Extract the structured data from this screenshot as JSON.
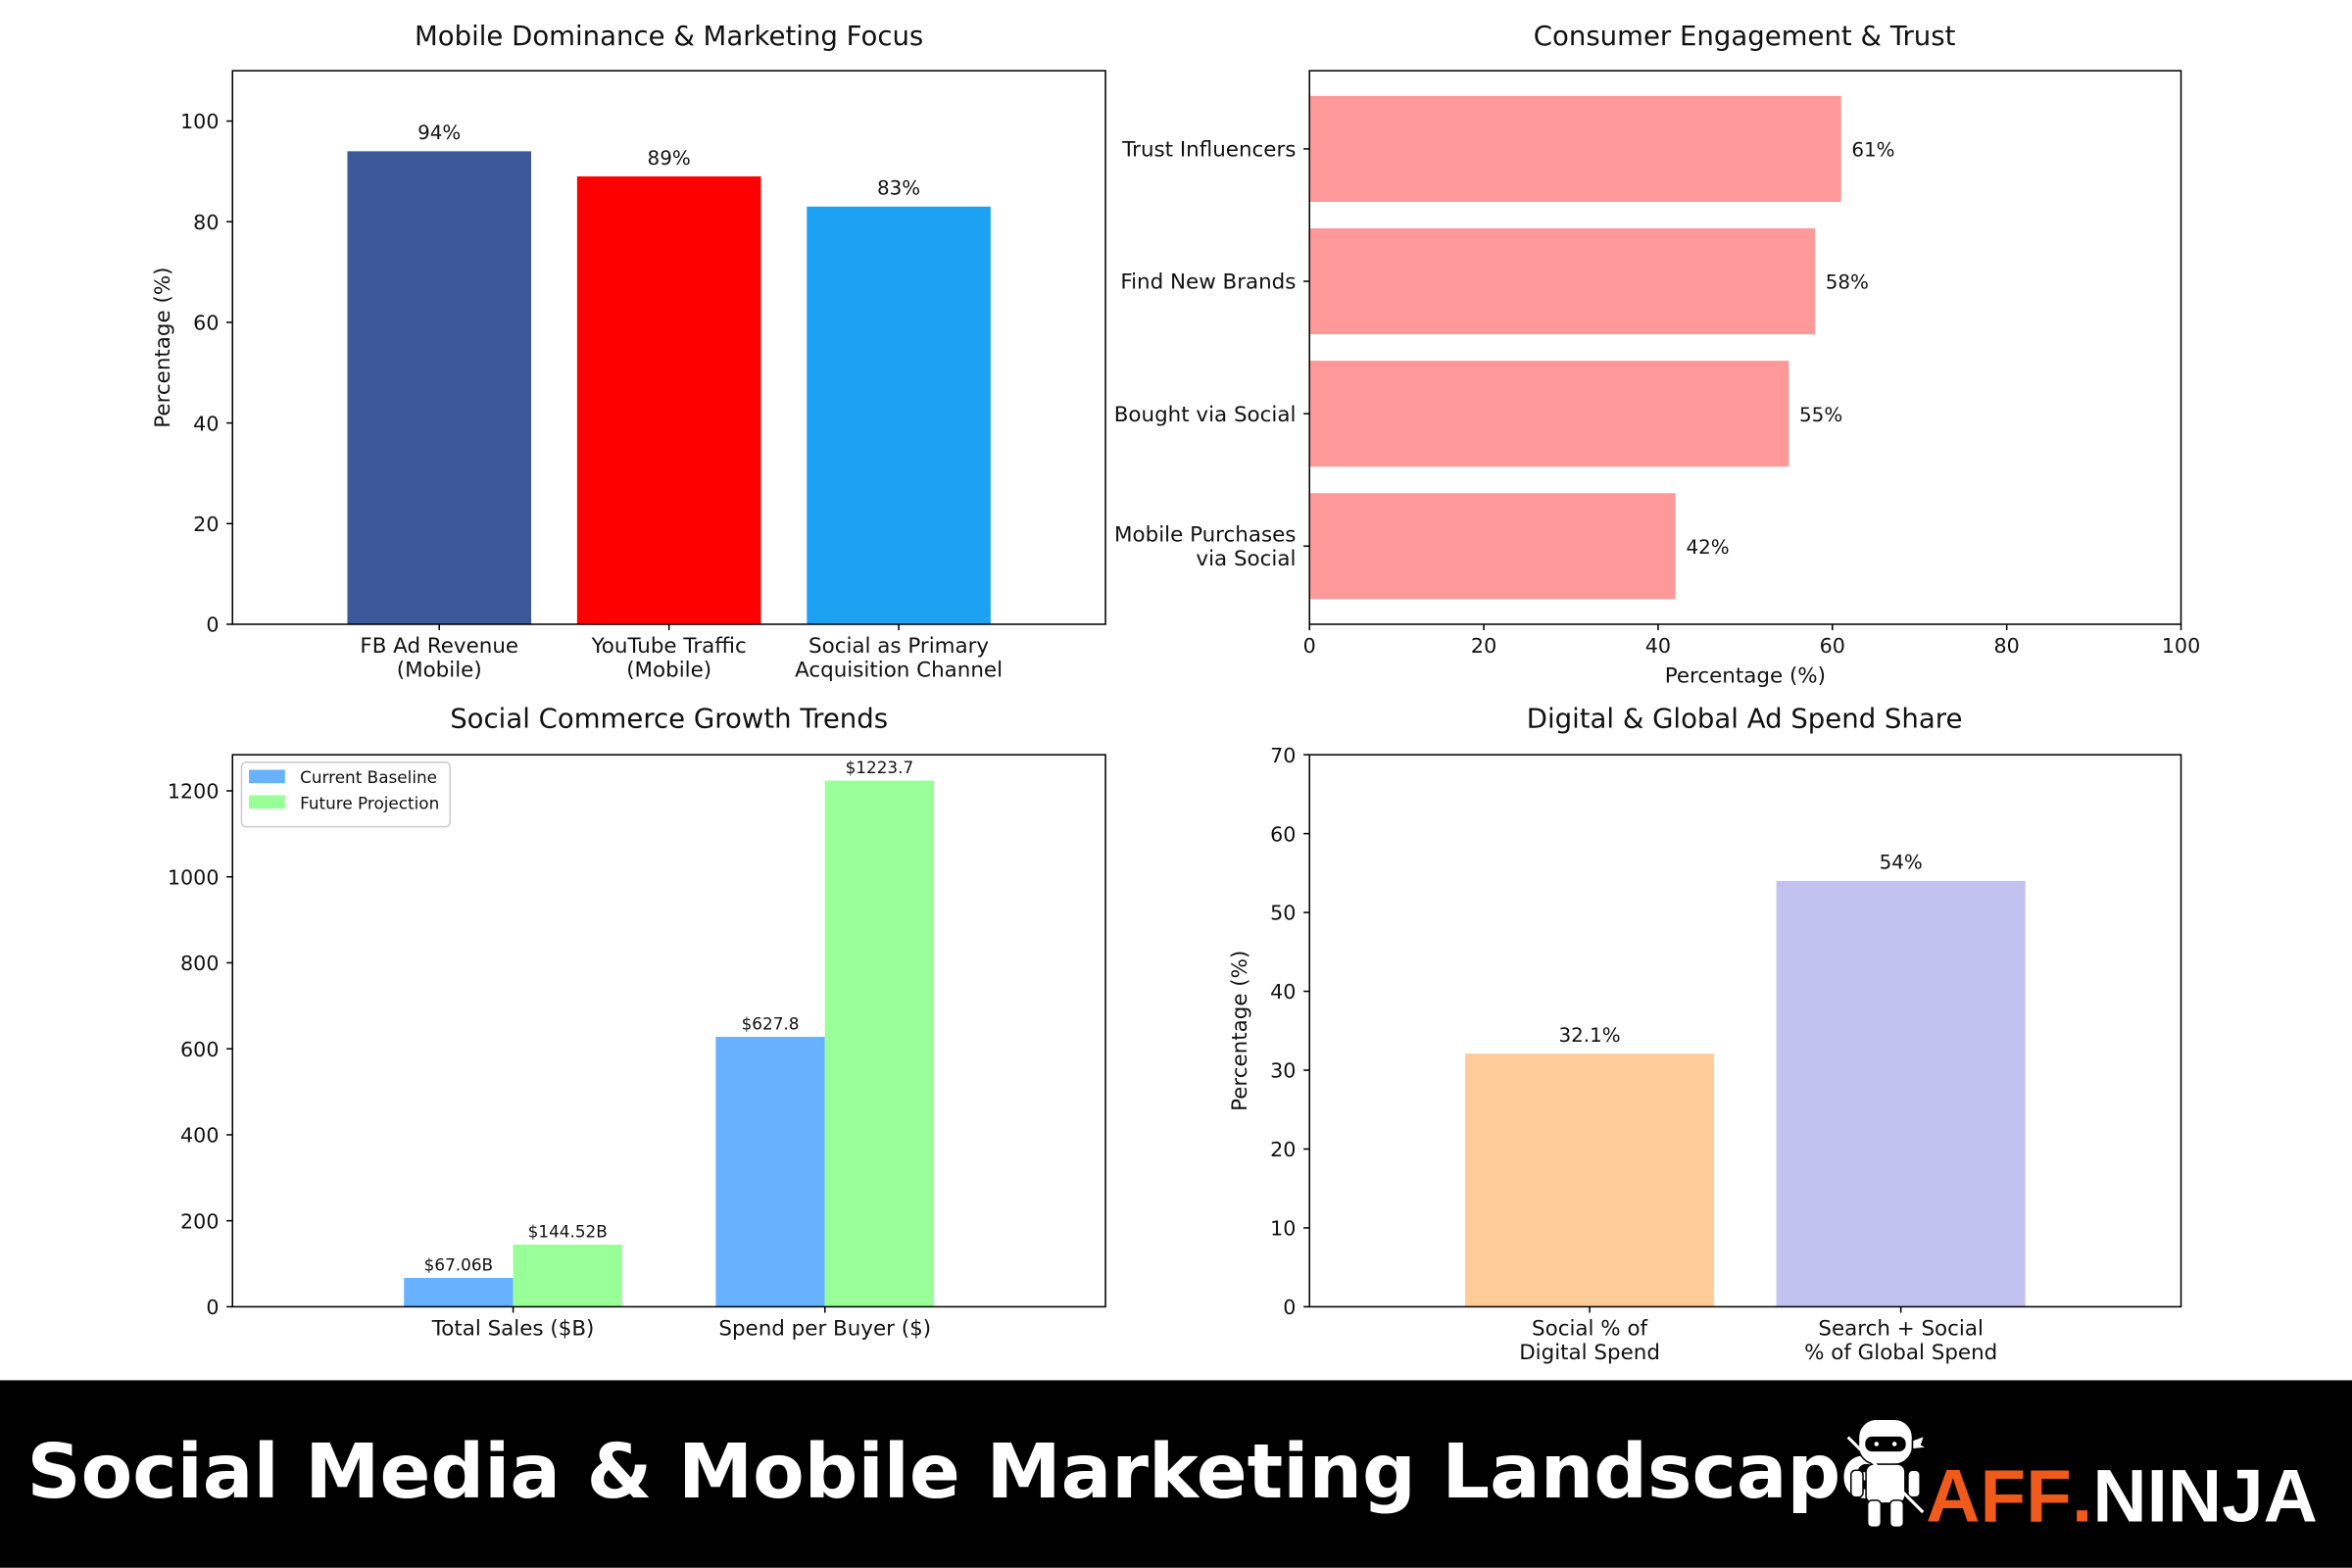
{
  "banner": {
    "title": "Social Media & Mobile Marketing Landscape",
    "logo_text": "AFF.NINJA",
    "logo_part1": "AFF",
    "logo_dot": ".",
    "logo_part2": "NINJA",
    "logo_color": "#F05A1A",
    "icon": "ninja-mascot-icon"
  },
  "chart_data": [
    {
      "type": "bar",
      "orientation": "vertical",
      "title": "Mobile Dominance & Marketing Focus",
      "ylabel": "Percentage (%)",
      "xlabel": "",
      "categories": [
        "FB Ad Revenue\n(Mobile)",
        "YouTube Traffic\n(Mobile)",
        "Social as Primary\nAcquisition Channel"
      ],
      "values": [
        94,
        89,
        83
      ],
      "data_labels": [
        "94%",
        "89%",
        "83%"
      ],
      "colors": [
        "#3B5998",
        "#FF0000",
        "#1DA1F2"
      ],
      "ylim": [
        0,
        110
      ],
      "yticks": [
        0,
        20,
        40,
        60,
        80,
        100
      ],
      "grid": false
    },
    {
      "type": "bar",
      "orientation": "horizontal",
      "title": "Consumer Engagement & Trust",
      "xlabel": "Percentage (%)",
      "ylabel": "",
      "categories": [
        "Trust Influencers",
        "Find New Brands",
        "Bought via Social",
        "Mobile Purchases\nvia Social"
      ],
      "values": [
        61,
        58,
        55,
        42
      ],
      "data_labels": [
        "61%",
        "58%",
        "55%",
        "42%"
      ],
      "colors": [
        "#FF9999"
      ],
      "xlim": [
        0,
        100
      ],
      "xticks": [
        0,
        20,
        40,
        60,
        80,
        100
      ],
      "grid": false
    },
    {
      "type": "bar",
      "orientation": "grouped",
      "title": "Social Commerce Growth Trends",
      "xlabel": "",
      "ylabel": "",
      "categories": [
        "Total Sales ($B)",
        "Spend per Buyer ($)"
      ],
      "series": [
        {
          "name": "Current Baseline",
          "values": [
            67.06,
            627.8
          ],
          "data_labels": [
            "$67.06B",
            "$627.8"
          ],
          "color": "#66B2FF"
        },
        {
          "name": "Future Projection",
          "values": [
            144.52,
            1223.7
          ],
          "data_labels": [
            "$144.52B",
            "$1223.7"
          ],
          "color": "#99FF99"
        }
      ],
      "ylim": [
        0,
        1284
      ],
      "yticks": [
        0,
        200,
        400,
        600,
        800,
        1000,
        1200
      ],
      "legend": "top-left",
      "grid": false
    },
    {
      "type": "bar",
      "orientation": "vertical",
      "title": "Digital & Global Ad Spend Share",
      "ylabel": "Percentage (%)",
      "xlabel": "",
      "categories": [
        "Social % of\nDigital Spend",
        "Search + Social\n% of Global Spend"
      ],
      "values": [
        32.1,
        54
      ],
      "data_labels": [
        "32.1%",
        "54%"
      ],
      "colors": [
        "#FFCC99",
        "#C2C2F0"
      ],
      "ylim": [
        0,
        70
      ],
      "yticks": [
        0,
        10,
        20,
        30,
        40,
        50,
        60,
        70
      ],
      "grid": false
    }
  ]
}
